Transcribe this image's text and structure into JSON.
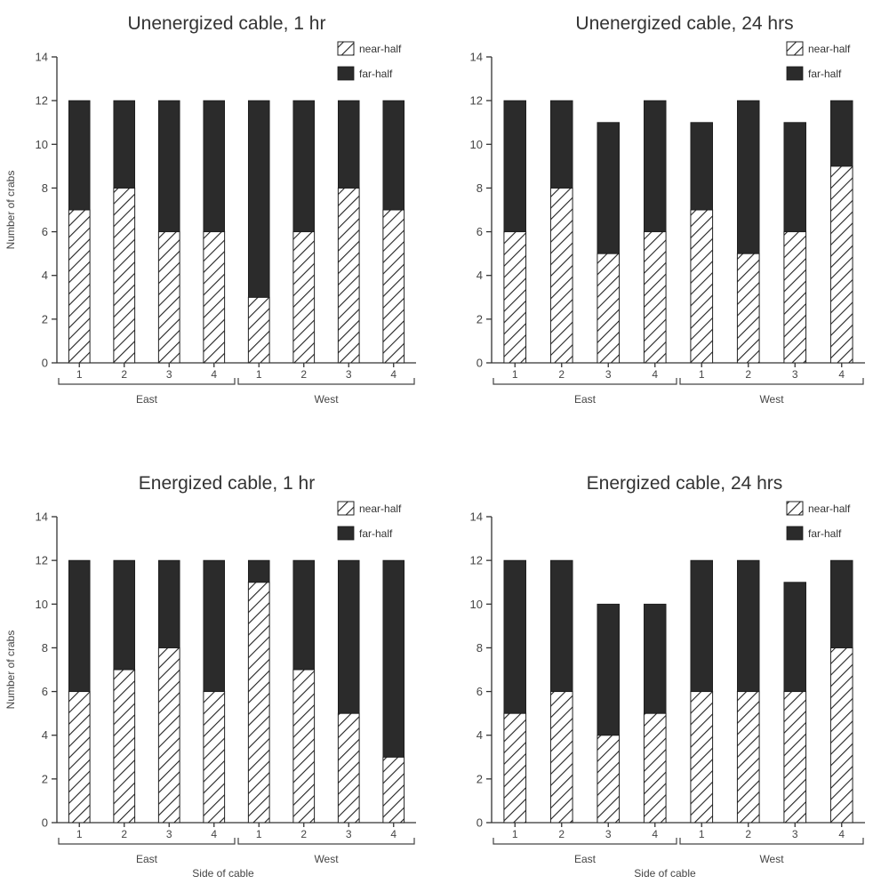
{
  "chart_data": [
    {
      "type": "bar",
      "stacked": true,
      "title": "Unenergized cable, 1 hr",
      "ylabel": "Number of crabs",
      "xlabel": "",
      "ylim": [
        0,
        14
      ],
      "yticks": [
        0,
        2,
        4,
        6,
        8,
        10,
        12,
        14
      ],
      "categories": [
        "1",
        "2",
        "3",
        "4",
        "1",
        "2",
        "3",
        "4"
      ],
      "groups": [
        {
          "name": "East",
          "categories": [
            "1",
            "2",
            "3",
            "4"
          ]
        },
        {
          "name": "West",
          "categories": [
            "1",
            "2",
            "3",
            "4"
          ]
        }
      ],
      "series": [
        {
          "name": "near-half",
          "values": [
            7,
            8,
            6,
            6,
            3,
            6,
            8,
            7
          ]
        },
        {
          "name": "far-half",
          "values": [
            5,
            4,
            6,
            6,
            9,
            6,
            4,
            5
          ]
        }
      ],
      "legend": "top-right"
    },
    {
      "type": "bar",
      "stacked": true,
      "title": "Unenergized cable, 24 hrs",
      "ylabel": "",
      "xlabel": "",
      "ylim": [
        0,
        14
      ],
      "yticks": [
        0,
        2,
        4,
        6,
        8,
        10,
        12,
        14
      ],
      "categories": [
        "1",
        "2",
        "3",
        "4",
        "1",
        "2",
        "3",
        "4"
      ],
      "groups": [
        {
          "name": "East",
          "categories": [
            "1",
            "2",
            "3",
            "4"
          ]
        },
        {
          "name": "West",
          "categories": [
            "1",
            "2",
            "3",
            "4"
          ]
        }
      ],
      "series": [
        {
          "name": "near-half",
          "values": [
            6,
            8,
            5,
            6,
            7,
            5,
            6,
            9
          ]
        },
        {
          "name": "far-half",
          "values": [
            6,
            4,
            6,
            6,
            4,
            7,
            5,
            3
          ]
        }
      ],
      "legend": "top-right"
    },
    {
      "type": "bar",
      "stacked": true,
      "title": "Energized cable, 1 hr",
      "ylabel": "Number of crabs",
      "xlabel": "Side of cable",
      "ylim": [
        0,
        14
      ],
      "yticks": [
        0,
        2,
        4,
        6,
        8,
        10,
        12,
        14
      ],
      "categories": [
        "1",
        "2",
        "3",
        "4",
        "1",
        "2",
        "3",
        "4"
      ],
      "groups": [
        {
          "name": "East",
          "categories": [
            "1",
            "2",
            "3",
            "4"
          ]
        },
        {
          "name": "West",
          "categories": [
            "1",
            "2",
            "3",
            "4"
          ]
        }
      ],
      "series": [
        {
          "name": "near-half",
          "values": [
            6,
            7,
            8,
            6,
            11,
            7,
            5,
            3
          ]
        },
        {
          "name": "far-half",
          "values": [
            6,
            5,
            4,
            6,
            1,
            5,
            7,
            9
          ]
        }
      ],
      "legend": "top-right"
    },
    {
      "type": "bar",
      "stacked": true,
      "title": "Energized cable, 24 hrs",
      "ylabel": "",
      "xlabel": "Side of cable",
      "ylim": [
        0,
        14
      ],
      "yticks": [
        0,
        2,
        4,
        6,
        8,
        10,
        12,
        14
      ],
      "categories": [
        "1",
        "2",
        "3",
        "4",
        "1",
        "2",
        "3",
        "4"
      ],
      "groups": [
        {
          "name": "East",
          "categories": [
            "1",
            "2",
            "3",
            "4"
          ]
        },
        {
          "name": "West",
          "categories": [
            "1",
            "2",
            "3",
            "4"
          ]
        }
      ],
      "series": [
        {
          "name": "near-half",
          "values": [
            5,
            6,
            4,
            5,
            6,
            6,
            6,
            8
          ]
        },
        {
          "name": "far-half",
          "values": [
            7,
            6,
            6,
            5,
            6,
            6,
            5,
            4
          ]
        }
      ],
      "legend": "top-right"
    }
  ],
  "colors": {
    "far_half": "#2b2b2b",
    "near_half_hatch": "#222222",
    "background": "#ffffff"
  }
}
